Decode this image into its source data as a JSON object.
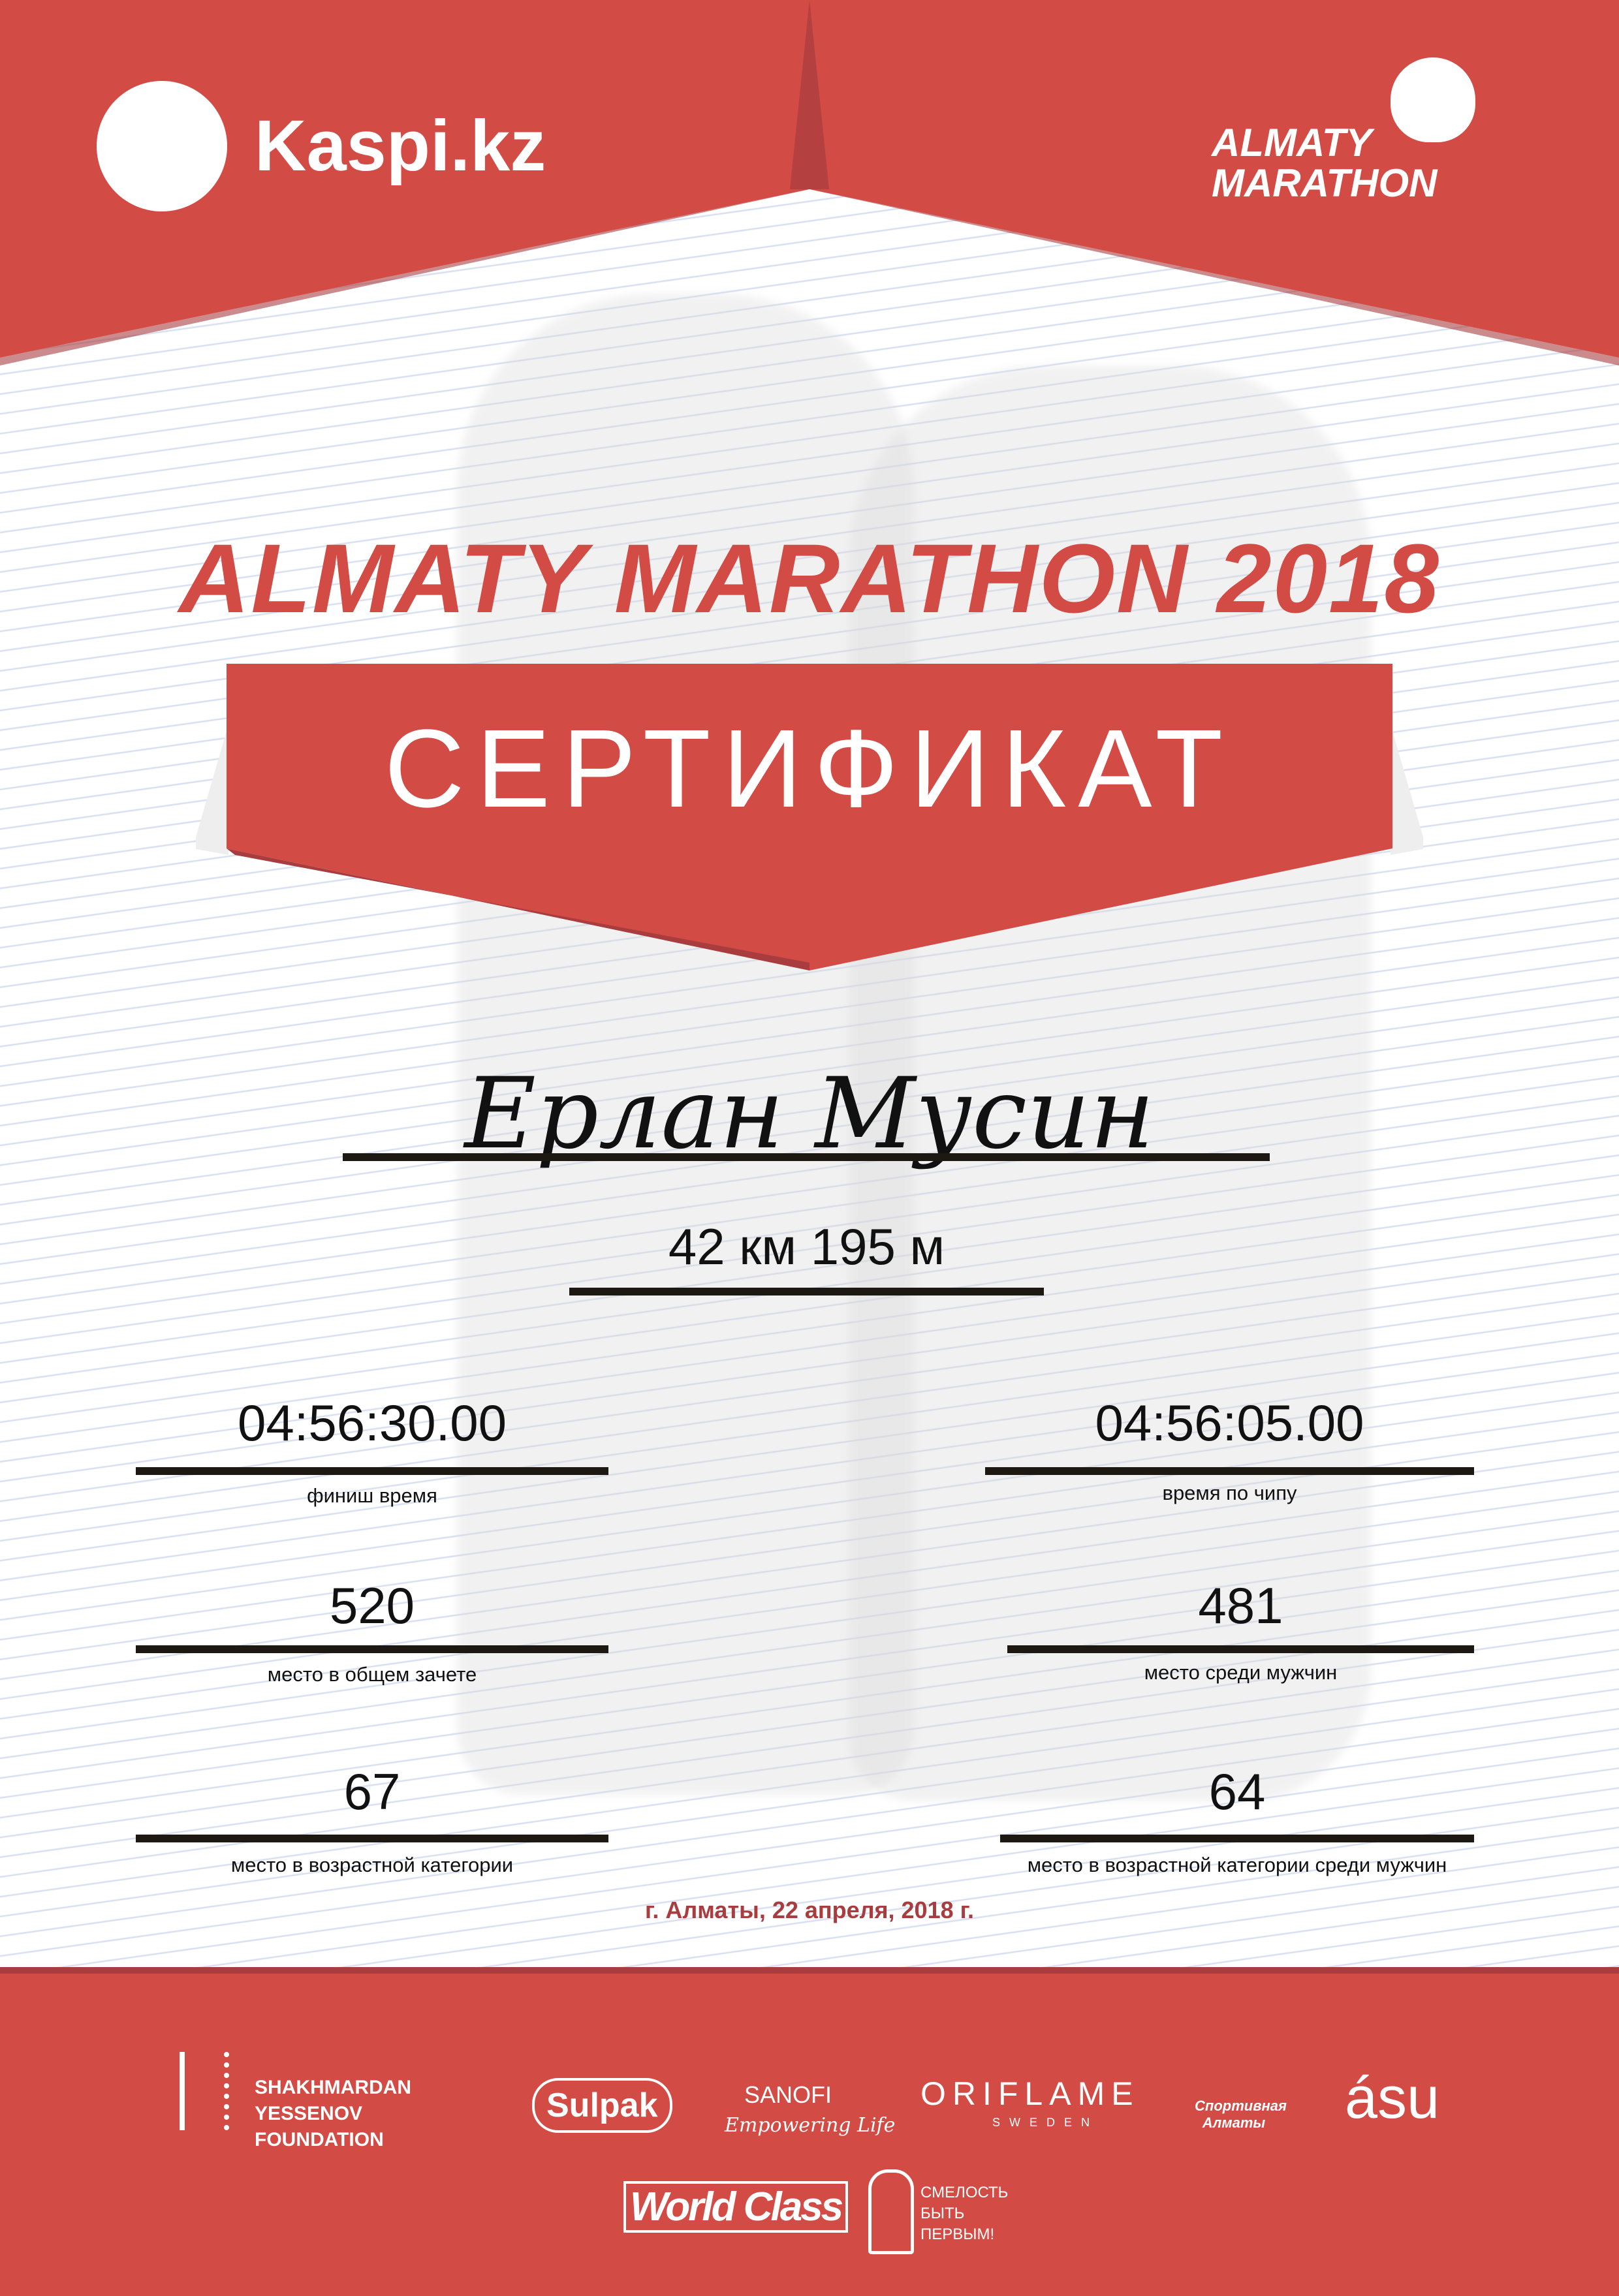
{
  "colors": {
    "brand_red": "#d24b45",
    "dark_red": "#a83c3e",
    "text": "#111111"
  },
  "header": {
    "kaspi_logo": "Kaspi.kz",
    "marathon_logo": "ALMATY MARATHON"
  },
  "title": "ALMATY MARATHON 2018",
  "banner": "СЕРТИФИКАТ",
  "participant": {
    "name": "Ерлан Мусин",
    "distance": "42 км 195 м"
  },
  "results": {
    "finish_time": {
      "value": "04:56:30.00",
      "label": "финиш время"
    },
    "chip_time": {
      "value": "04:56:05.00",
      "label": "время по чипу"
    },
    "overall_place": {
      "value": "520",
      "label": "место в общем зачете"
    },
    "men_place": {
      "value": "481",
      "label": "место среди мужчин"
    },
    "age_place": {
      "value": "67",
      "label": "место в возрастной категории"
    },
    "age_men_place": {
      "value": "64",
      "label": "место в возрастной категории среди мужчин"
    }
  },
  "date": "г. Алматы, 22 апреля, 2018 г.",
  "sponsors": {
    "yessenov": "SHAKHMARDAN YESSENOV FOUNDATION",
    "sulpak": "Sulpak",
    "sanofi": "SANOFI",
    "sanofi_tagline": "Empowering Life",
    "oriflame": "ORIFLAME",
    "oriflame_sub": "SWEDEN",
    "sport_almaty": "Спортивная Алматы",
    "asu": "ásu",
    "worldclass": "World Class",
    "courage": "СМЕЛОСТЬ БЫТЬ ПЕРВЫМ!"
  }
}
